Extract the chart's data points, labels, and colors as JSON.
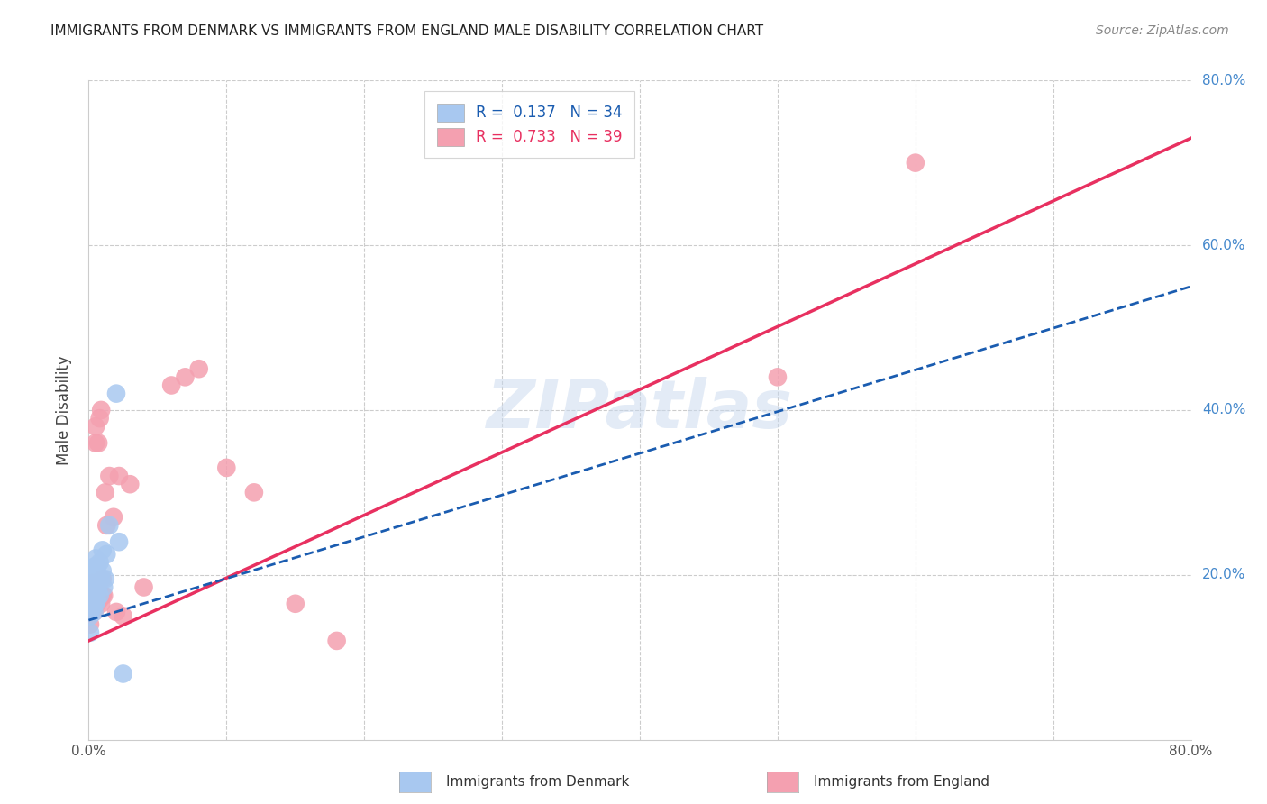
{
  "title": "IMMIGRANTS FROM DENMARK VS IMMIGRANTS FROM ENGLAND MALE DISABILITY CORRELATION CHART",
  "source": "Source: ZipAtlas.com",
  "ylabel": "Male Disability",
  "xlim": [
    0.0,
    0.8
  ],
  "ylim": [
    0.0,
    0.8
  ],
  "legend_label1": "Immigrants from Denmark",
  "legend_label2": "Immigrants from England",
  "R1": "0.137",
  "N1": "34",
  "R2": "0.733",
  "N2": "39",
  "color_denmark": "#a8c8f0",
  "color_england": "#f4a0b0",
  "line_color_denmark": "#1a5cb0",
  "line_color_england": "#e83060",
  "background_color": "#ffffff",
  "grid_color": "#cccccc",
  "denmark_x": [
    0.001,
    0.001,
    0.002,
    0.002,
    0.002,
    0.002,
    0.003,
    0.003,
    0.003,
    0.003,
    0.004,
    0.004,
    0.004,
    0.005,
    0.005,
    0.005,
    0.005,
    0.006,
    0.006,
    0.006,
    0.007,
    0.007,
    0.008,
    0.008,
    0.009,
    0.01,
    0.01,
    0.011,
    0.012,
    0.013,
    0.015,
    0.02,
    0.022,
    0.025
  ],
  "denmark_y": [
    0.13,
    0.15,
    0.165,
    0.175,
    0.18,
    0.19,
    0.16,
    0.17,
    0.185,
    0.2,
    0.155,
    0.17,
    0.21,
    0.165,
    0.18,
    0.195,
    0.22,
    0.17,
    0.19,
    0.21,
    0.185,
    0.2,
    0.175,
    0.215,
    0.195,
    0.205,
    0.23,
    0.185,
    0.195,
    0.225,
    0.26,
    0.42,
    0.24,
    0.08
  ],
  "england_x": [
    0.001,
    0.002,
    0.002,
    0.003,
    0.003,
    0.003,
    0.004,
    0.004,
    0.005,
    0.005,
    0.006,
    0.006,
    0.007,
    0.007,
    0.008,
    0.008,
    0.009,
    0.009,
    0.01,
    0.01,
    0.011,
    0.012,
    0.013,
    0.015,
    0.018,
    0.02,
    0.022,
    0.025,
    0.03,
    0.04,
    0.06,
    0.07,
    0.08,
    0.1,
    0.12,
    0.15,
    0.18,
    0.5,
    0.6
  ],
  "england_y": [
    0.14,
    0.16,
    0.18,
    0.155,
    0.17,
    0.19,
    0.155,
    0.175,
    0.36,
    0.38,
    0.165,
    0.19,
    0.185,
    0.36,
    0.17,
    0.39,
    0.165,
    0.4,
    0.175,
    0.195,
    0.175,
    0.3,
    0.26,
    0.32,
    0.27,
    0.155,
    0.32,
    0.15,
    0.31,
    0.185,
    0.43,
    0.44,
    0.45,
    0.33,
    0.3,
    0.165,
    0.12,
    0.44,
    0.7
  ],
  "line_dk_x0": 0.0,
  "line_dk_y0": 0.145,
  "line_dk_x1": 0.8,
  "line_dk_y1": 0.55,
  "line_en_x0": 0.0,
  "line_en_y0": 0.12,
  "line_en_x1": 0.8,
  "line_en_y1": 0.73,
  "watermark": "ZIPatlas",
  "figsize": [
    14.06,
    8.92
  ],
  "dpi": 100
}
